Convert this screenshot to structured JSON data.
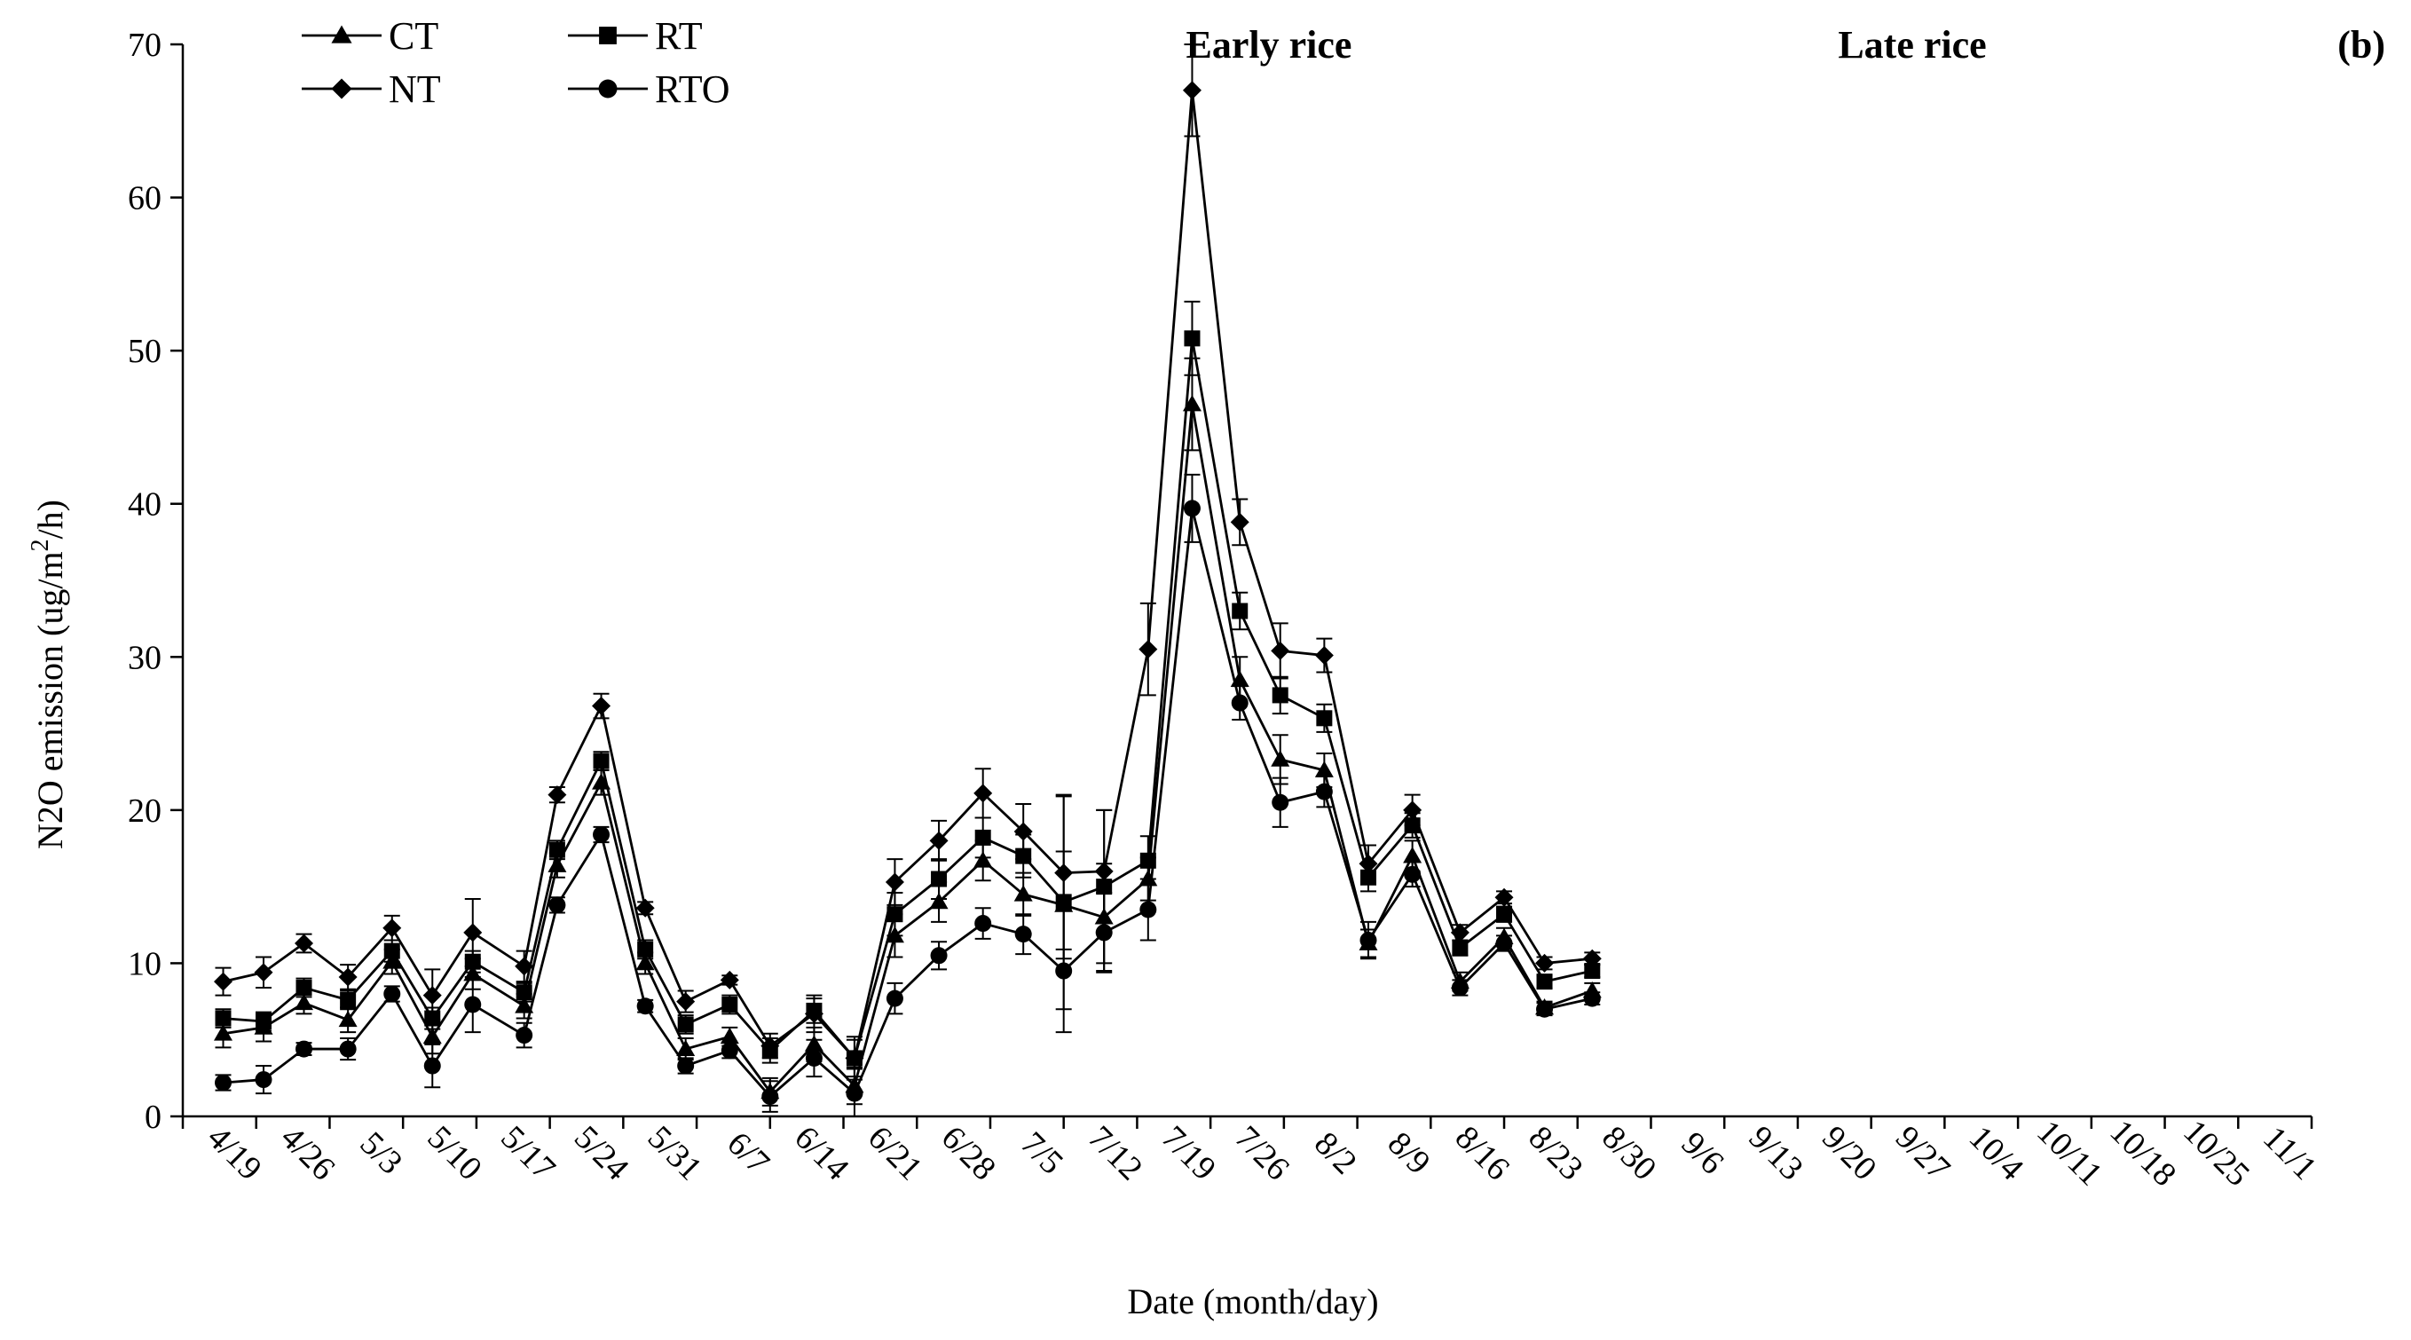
{
  "chart_data": {
    "type": "line",
    "panel_label": "(b)",
    "annotations": [
      "Early rice",
      "Late rice"
    ],
    "xlabel": "Date (month/day)",
    "ylabel": "N2O emission (ug/m2/h)",
    "ylabel_parts": {
      "pre": "N2O emission (ug/m",
      "sup": "2",
      "post": "/h)"
    },
    "ylim": [
      0,
      70
    ],
    "yticks": [
      0,
      10,
      20,
      30,
      40,
      50,
      60,
      70
    ],
    "x_tick_labels": [
      "4/19",
      "4/26",
      "5/3",
      "5/10",
      "5/17",
      "5/24",
      "5/31",
      "6/7",
      "6/14",
      "6/21",
      "6/28",
      "7/5",
      "7/12",
      "7/19",
      "7/26",
      "8/2",
      "8/9",
      "8/16",
      "8/23",
      "8/30",
      "9/6",
      "9/13",
      "9/20",
      "9/27",
      "10/4",
      "10/11",
      "10/18",
      "10/25",
      "11/1"
    ],
    "x_points": [
      0,
      0.5,
      1,
      1.5,
      2,
      2.5,
      3,
      3.5,
      4,
      4.5,
      5,
      5.5,
      6,
      6.5,
      7,
      7.5,
      8,
      8.5,
      9,
      9.5,
      10,
      10.5,
      11,
      11.5,
      12,
      12.5,
      13,
      13.5,
      14,
      14.5,
      15,
      15.5,
      16,
      16.5,
      17,
      17.5,
      18,
      18.5,
      19,
      19.5,
      20,
      20.5,
      21,
      21.5,
      22,
      22.5,
      23,
      23.5,
      24,
      24.5,
      25,
      25.5,
      26,
      26.5,
      27,
      27.5,
      28
    ],
    "series": [
      {
        "name": "CT",
        "marker": "triangle",
        "values": [
          5.4,
          5.8,
          7.4,
          6.3,
          10.1,
          5.2,
          9.3,
          7.2,
          16.4,
          21.8,
          10.0,
          4.4,
          5.2,
          1.6,
          4.7,
          2.0,
          11.8,
          14.0,
          16.7,
          14.5,
          13.8,
          13.0,
          15.5,
          46.5,
          28.5,
          23.3,
          22.6,
          11.3,
          17.0,
          8.8,
          11.7,
          7.1,
          8.2
        ],
        "errors": [
          0.9,
          0.9,
          0.7,
          0.8,
          0.8,
          1.1,
          1.0,
          0.8,
          0.8,
          0.8,
          0.7,
          0.7,
          0.6,
          0.9,
          1.1,
          1.2,
          1.4,
          1.3,
          1.3,
          1.4,
          3.5,
          3.5,
          1.4,
          3.0,
          1.5,
          1.6,
          1.1,
          0.9,
          1.0,
          0.6,
          0.6,
          0.4,
          0.5
        ]
      },
      {
        "name": "RT",
        "marker": "square",
        "values": [
          6.4,
          6.2,
          8.4,
          7.6,
          10.8,
          6.4,
          10.1,
          8.1,
          17.4,
          23.2,
          10.9,
          6.0,
          7.3,
          4.3,
          6.9,
          3.8,
          13.2,
          15.5,
          18.2,
          17.0,
          14.0,
          15.0,
          16.7,
          50.8,
          33.0,
          27.5,
          26.0,
          15.6,
          19.0,
          11.0,
          13.2,
          8.8,
          9.5
        ],
        "errors": [
          0.6,
          0.6,
          0.6,
          0.6,
          0.7,
          0.7,
          0.7,
          0.6,
          0.6,
          0.6,
          0.6,
          0.6,
          0.6,
          0.8,
          0.8,
          1.2,
          1.4,
          1.3,
          1.3,
          1.4,
          7.0,
          5.0,
          1.6,
          2.4,
          1.2,
          1.2,
          0.9,
          0.9,
          0.8,
          0.5,
          0.5,
          0.4,
          0.4
        ]
      },
      {
        "name": "NT",
        "marker": "diamond",
        "values": [
          8.8,
          9.4,
          11.3,
          9.1,
          12.3,
          7.9,
          12.0,
          9.8,
          21.0,
          26.8,
          13.6,
          7.5,
          8.9,
          4.6,
          6.7,
          3.8,
          15.3,
          18.0,
          21.1,
          18.6,
          15.9,
          16.0,
          30.5,
          67.0,
          38.8,
          30.4,
          30.1,
          16.5,
          20.0,
          12.0,
          14.3,
          10.0,
          10.3
        ],
        "errors": [
          0.9,
          1.0,
          0.6,
          0.8,
          0.8,
          1.7,
          2.2,
          1.0,
          0.5,
          0.8,
          0.4,
          0.7,
          0.3,
          0.8,
          1.2,
          1.4,
          1.5,
          1.3,
          1.6,
          1.8,
          5.0,
          4.0,
          3.0,
          3.0,
          1.5,
          1.8,
          1.1,
          1.2,
          1.0,
          0.5,
          0.4,
          0.4,
          0.4
        ]
      },
      {
        "name": "RTO",
        "marker": "circle",
        "values": [
          2.2,
          2.4,
          4.4,
          4.4,
          8.0,
          3.3,
          7.3,
          5.3,
          13.8,
          18.4,
          7.2,
          3.3,
          4.3,
          1.3,
          3.8,
          1.5,
          7.7,
          10.5,
          12.6,
          11.9,
          9.5,
          12.0,
          13.5,
          39.7,
          27.0,
          20.5,
          21.2,
          11.5,
          15.8,
          8.4,
          11.3,
          7.0,
          7.7
        ],
        "errors": [
          0.5,
          0.9,
          0.4,
          0.7,
          0.5,
          1.4,
          1.8,
          0.8,
          0.5,
          0.5,
          0.4,
          0.5,
          0.5,
          1.0,
          1.2,
          1.6,
          1.0,
          0.9,
          1.0,
          1.3,
          4.0,
          2.6,
          2.0,
          2.2,
          1.1,
          1.6,
          1.0,
          1.2,
          0.8,
          0.5,
          0.5,
          0.4,
          0.4
        ]
      }
    ],
    "x_index_for_values": [
      0,
      0.5,
      1,
      1.5,
      2,
      2.5,
      3,
      3.5,
      4,
      4.5,
      5,
      5.5,
      6,
      6.5,
      7,
      7.5,
      8,
      8.5,
      9,
      9.5,
      10,
      10.5,
      11,
      11.5,
      12,
      12.5,
      13,
      13.5,
      14,
      14.5,
      15,
      15.5,
      16,
      16.5,
      17,
      17.5,
      18,
      18.5,
      19,
      19.5,
      20,
      20.5,
      21,
      21.5,
      22,
      22.5,
      23,
      23.5,
      24,
      24.5,
      25,
      25.5,
      26,
      26.5,
      27,
      27.5,
      28
    ],
    "point_positions": [
      0,
      0.55,
      1.1,
      1.7,
      2.3,
      2.85,
      3.4,
      4.1,
      4.55,
      5.15,
      5.75,
      6.3,
      6.9,
      7.45,
      8.05,
      8.6,
      9.15,
      9.75,
      10.35,
      10.9,
      11.45,
      12.0,
      12.6,
      13.2,
      13.85,
      14.4,
      15.0,
      15.6,
      16.2,
      16.85,
      17.45,
      18.0,
      18.65
    ],
    "legend_position": "top-left",
    "grid": false
  }
}
